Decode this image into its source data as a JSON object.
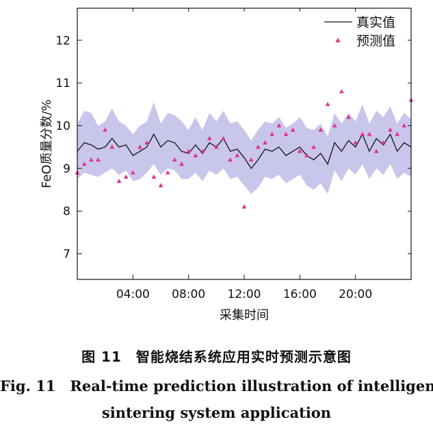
{
  "chart_data": {
    "type": "line",
    "ylabel": "FeO质量分数/%",
    "xlabel": "采集时间",
    "ylim": [
      6.4,
      12.75
    ],
    "xlim": [
      0,
      48
    ],
    "yticks": [
      7,
      8,
      9,
      10,
      11,
      12
    ],
    "xticks": [
      {
        "x": 8,
        "label": "04:00"
      },
      {
        "x": 16,
        "label": "08:00"
      },
      {
        "x": 24,
        "label": "12:00"
      },
      {
        "x": 32,
        "label": "16:00"
      },
      {
        "x": 40,
        "label": "20:00"
      }
    ],
    "legend": {
      "position": "top-right",
      "entries": [
        "真实值",
        "预测值"
      ]
    },
    "series": [
      {
        "name": "真实值",
        "style": "line",
        "color": "#111111",
        "x": [
          0,
          1,
          2,
          3,
          4,
          5,
          6,
          7,
          8,
          9,
          10,
          11,
          12,
          13,
          14,
          15,
          16,
          17,
          18,
          19,
          20,
          21,
          22,
          23,
          24,
          25,
          26,
          27,
          28,
          29,
          30,
          31,
          32,
          33,
          34,
          35,
          36,
          37,
          38,
          39,
          40,
          41,
          42,
          43,
          44,
          45,
          46,
          47,
          48
        ],
        "y": [
          9.4,
          9.6,
          9.55,
          9.45,
          9.5,
          9.7,
          9.5,
          9.55,
          9.3,
          9.4,
          9.5,
          9.8,
          9.5,
          9.65,
          9.6,
          9.4,
          9.35,
          9.55,
          9.35,
          9.6,
          9.5,
          9.7,
          9.4,
          9.45,
          9.25,
          9.0,
          9.2,
          9.45,
          9.4,
          9.5,
          9.3,
          9.4,
          9.5,
          9.3,
          9.2,
          9.35,
          9.1,
          9.6,
          9.4,
          9.65,
          9.5,
          9.8,
          9.4,
          9.7,
          9.55,
          9.8,
          9.4,
          9.6,
          9.5
        ]
      },
      {
        "name": "预测值",
        "style": "marker",
        "marker": "triangle",
        "color": "#e0338f",
        "x": [
          0,
          1,
          2,
          3,
          4,
          5,
          6,
          7,
          8,
          9,
          10,
          11,
          12,
          13,
          14,
          15,
          16,
          17,
          18,
          19,
          20,
          21,
          22,
          23,
          24,
          25,
          26,
          27,
          28,
          29,
          30,
          31,
          32,
          33,
          34,
          35,
          36,
          37,
          38,
          39,
          40,
          41,
          42,
          43,
          44,
          45,
          46,
          47,
          48
        ],
        "y": [
          8.9,
          9.1,
          9.2,
          9.2,
          9.9,
          9.5,
          8.7,
          8.8,
          8.9,
          9.5,
          9.6,
          8.8,
          8.6,
          8.9,
          9.2,
          9.1,
          9.4,
          9.3,
          9.4,
          9.7,
          9.5,
          9.7,
          9.2,
          9.3,
          8.1,
          9.2,
          9.5,
          9.6,
          9.8,
          10.0,
          9.8,
          9.9,
          9.4,
          9.3,
          9.5,
          9.9,
          10.5,
          10.0,
          10.8,
          10.2,
          9.6,
          9.8,
          9.8,
          9.4,
          9.6,
          9.9,
          9.8,
          10.0,
          10.6
        ]
      },
      {
        "name": "置信区间",
        "style": "band",
        "color": "#c9c6ec",
        "x": [
          0,
          1,
          2,
          3,
          4,
          5,
          6,
          7,
          8,
          9,
          10,
          11,
          12,
          13,
          14,
          15,
          16,
          17,
          18,
          19,
          20,
          21,
          22,
          23,
          24,
          25,
          26,
          27,
          28,
          29,
          30,
          31,
          32,
          33,
          34,
          35,
          36,
          37,
          38,
          39,
          40,
          41,
          42,
          43,
          44,
          45,
          46,
          47,
          48
        ],
        "upper": [
          10.05,
          10.35,
          10.3,
          10.0,
          10.1,
          10.4,
          10.1,
          10.0,
          9.8,
          10.0,
          10.1,
          10.55,
          10.05,
          10.3,
          10.25,
          10.1,
          9.9,
          10.2,
          9.9,
          10.3,
          10.1,
          10.35,
          10.05,
          10.1,
          9.9,
          9.65,
          9.9,
          10.1,
          10.05,
          10.2,
          9.95,
          10.05,
          10.2,
          9.95,
          9.9,
          10.05,
          9.75,
          10.3,
          10.05,
          10.3,
          10.1,
          10.5,
          10.05,
          10.35,
          10.2,
          10.45,
          10.05,
          10.3,
          10.15
        ],
        "lower": [
          8.75,
          8.9,
          8.85,
          8.8,
          8.9,
          9.0,
          8.85,
          8.95,
          8.7,
          8.75,
          8.9,
          9.1,
          8.85,
          9.0,
          8.95,
          8.75,
          8.75,
          8.9,
          8.7,
          8.95,
          8.85,
          9.0,
          8.75,
          8.8,
          8.6,
          8.4,
          8.55,
          8.8,
          8.75,
          8.85,
          8.65,
          8.75,
          8.85,
          8.6,
          8.5,
          8.65,
          8.4,
          8.95,
          8.7,
          9.0,
          8.85,
          9.1,
          8.75,
          9.0,
          8.85,
          9.1,
          8.75,
          8.9,
          8.8
        ]
      }
    ]
  },
  "caption": {
    "cn": "图 11　智能烧结系统应用实时预测示意图",
    "en_line1": "Fig. 11　Real-time prediction illustration of intelligent",
    "en_line2": "sintering system application"
  }
}
